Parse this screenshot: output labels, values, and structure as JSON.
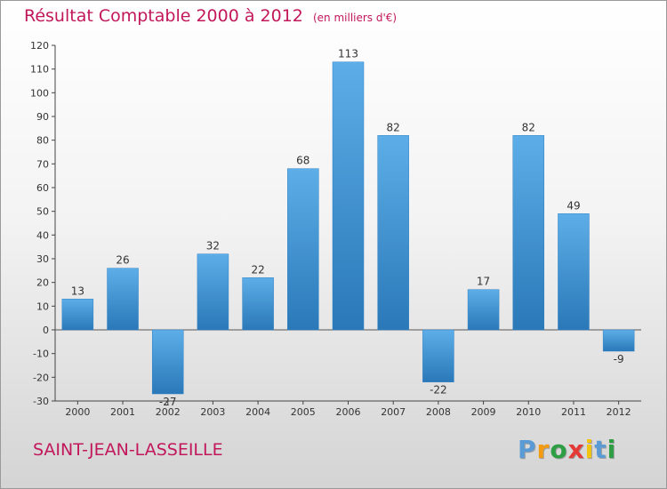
{
  "header": {
    "title": "Résultat Comptable 2000 à 2012",
    "unit": "(en milliers d'€)"
  },
  "footer": {
    "commune": "SAINT-JEAN-LASSEILLE",
    "brand_letters": [
      "P",
      "r",
      "o",
      "x",
      "i",
      "t",
      "i"
    ],
    "brand_colors": [
      "#5b9bd5",
      "#f39c12",
      "#2e9e44",
      "#e53935",
      "#f1c40f",
      "#5b9bd5",
      "#2e9e44"
    ]
  },
  "chart_data": {
    "type": "bar",
    "title": "Résultat Comptable 2000 à 2012",
    "subtitle": "(en milliers d'€)",
    "xlabel": "",
    "ylabel": "",
    "categories": [
      "2000",
      "2001",
      "2002",
      "2003",
      "2004",
      "2005",
      "2006",
      "2007",
      "2008",
      "2009",
      "2010",
      "2011",
      "2012"
    ],
    "values": [
      13,
      26,
      -27,
      32,
      22,
      68,
      113,
      82,
      -22,
      17,
      82,
      49,
      -9
    ],
    "ylim": [
      -30,
      120
    ],
    "yticks": [
      -30,
      -20,
      -10,
      0,
      10,
      20,
      30,
      40,
      50,
      60,
      70,
      80,
      90,
      100,
      110,
      120
    ],
    "grid": false,
    "bar_color": "#3d8fd1"
  }
}
